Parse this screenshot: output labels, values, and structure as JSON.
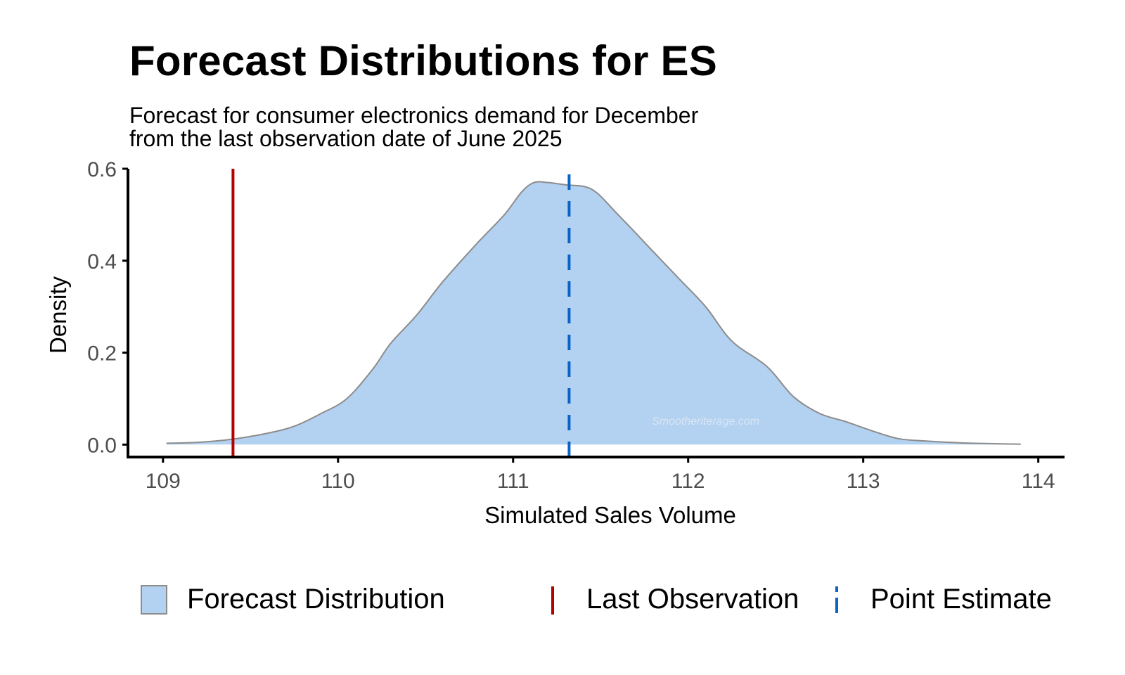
{
  "title": "Forecast Distributions for ES",
  "subtitle": "Forecast for consumer electronics demand for December\nfrom the last observation date of June 2025",
  "watermark": "Smootheriterage.com",
  "colors": {
    "fill": "#b3d1f0",
    "outline": "#8c8c8c",
    "last_observation": "#b30000",
    "point_estimate": "#0a64c8",
    "axis": "#000000",
    "tick_text": "#4d4d4d"
  },
  "chart_data": {
    "type": "area",
    "title": "Forecast Distributions for ES",
    "xlabel": "Simulated Sales Volume",
    "ylabel": "Density",
    "xlim": [
      108.8,
      114.15
    ],
    "ylim": [
      -0.027,
      0.6
    ],
    "x_ticks": [
      109,
      110,
      111,
      112,
      113,
      114
    ],
    "x_tick_labels": [
      "109",
      "110",
      "111",
      "112",
      "113",
      "114"
    ],
    "y_ticks": [
      0.0,
      0.2,
      0.4,
      0.6
    ],
    "y_tick_labels": [
      "0.0",
      "0.2",
      "0.4",
      "0.6"
    ],
    "grid": false,
    "legend_position": "bottom",
    "series": [
      {
        "name": "Forecast Distribution",
        "x": [
          109.02,
          109.2,
          109.4,
          109.6,
          109.75,
          109.9,
          110.05,
          110.2,
          110.3,
          110.45,
          110.6,
          110.8,
          110.95,
          111.05,
          111.12,
          111.2,
          111.3,
          111.45,
          111.6,
          111.8,
          111.95,
          112.1,
          112.25,
          112.45,
          112.6,
          112.75,
          112.9,
          113.05,
          113.2,
          113.35,
          113.55,
          113.75,
          113.9
        ],
        "y": [
          0.003,
          0.005,
          0.012,
          0.025,
          0.04,
          0.067,
          0.1,
          0.165,
          0.22,
          0.282,
          0.355,
          0.44,
          0.5,
          0.55,
          0.57,
          0.57,
          0.565,
          0.555,
          0.5,
          0.42,
          0.36,
          0.3,
          0.225,
          0.17,
          0.105,
          0.068,
          0.05,
          0.03,
          0.013,
          0.008,
          0.004,
          0.002,
          0.001
        ]
      }
    ],
    "reference_lines": [
      {
        "name": "Last Observation",
        "x": 109.4,
        "style": "solid"
      },
      {
        "name": "Point Estimate",
        "x": 111.32,
        "style": "dashed"
      }
    ]
  },
  "legend": {
    "items": [
      {
        "label": "Forecast Distribution"
      },
      {
        "label": "Last Observation"
      },
      {
        "label": "Point Estimate"
      }
    ]
  }
}
